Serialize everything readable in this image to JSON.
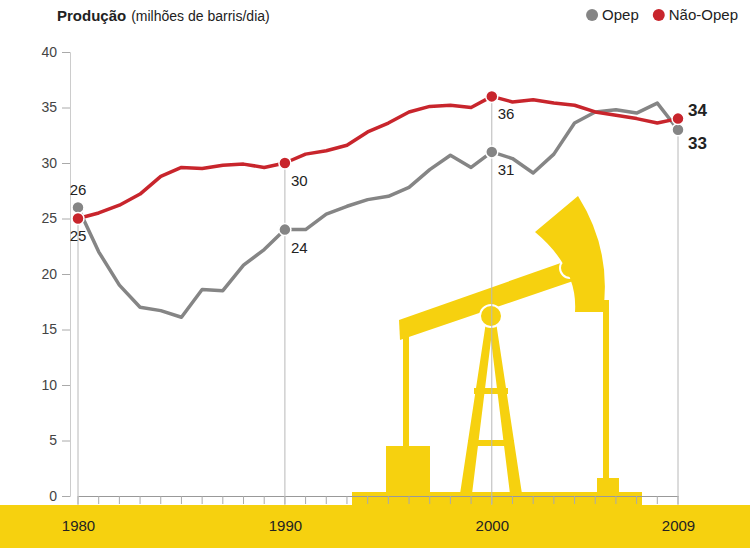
{
  "chart_data": {
    "type": "line",
    "title": "Produção",
    "subtitle": "(milhões de barris/dia)",
    "x": [
      1980,
      1981,
      1982,
      1983,
      1984,
      1985,
      1986,
      1987,
      1988,
      1989,
      1990,
      1991,
      1992,
      1993,
      1994,
      1995,
      1996,
      1997,
      1998,
      1999,
      2000,
      2001,
      2002,
      2003,
      2004,
      2005,
      2006,
      2007,
      2008,
      2009
    ],
    "series": [
      {
        "name": "Opep",
        "color": "#858585",
        "values": [
          26,
          22,
          19,
          17,
          16.7,
          16.1,
          18.6,
          18.5,
          20.8,
          22.2,
          24,
          24,
          25.4,
          26.1,
          26.7,
          27,
          27.8,
          29.4,
          30.7,
          29.6,
          31,
          30.4,
          29.1,
          30.8,
          33.6,
          34.6,
          34.8,
          34.5,
          35.4,
          33
        ]
      },
      {
        "name": "Não-Opep",
        "color": "#c8252c",
        "values": [
          25,
          25.5,
          26.2,
          27.2,
          28.8,
          29.6,
          29.5,
          29.8,
          29.9,
          29.6,
          30,
          30.8,
          31.1,
          31.6,
          32.8,
          33.6,
          34.6,
          35.1,
          35.2,
          35,
          36,
          35.5,
          35.7,
          35.4,
          35.2,
          34.6,
          34.3,
          34,
          33.6,
          34
        ]
      }
    ],
    "xlim": [
      1980,
      2009
    ],
    "xticks": [
      1980,
      1990,
      2000,
      2009
    ],
    "ylim": [
      0,
      40
    ],
    "yticks": [
      0,
      5,
      10,
      15,
      20,
      25,
      30,
      35,
      40
    ],
    "grid": false,
    "legend": "top-right",
    "annotations": [
      {
        "x": 1980,
        "labels": [
          "26",
          "25"
        ]
      },
      {
        "x": 1990,
        "labels": [
          "24",
          "30"
        ]
      },
      {
        "x": 2000,
        "labels": [
          "31",
          "36"
        ]
      },
      {
        "x": 2009,
        "labels": [
          "33",
          "34"
        ]
      }
    ]
  }
}
